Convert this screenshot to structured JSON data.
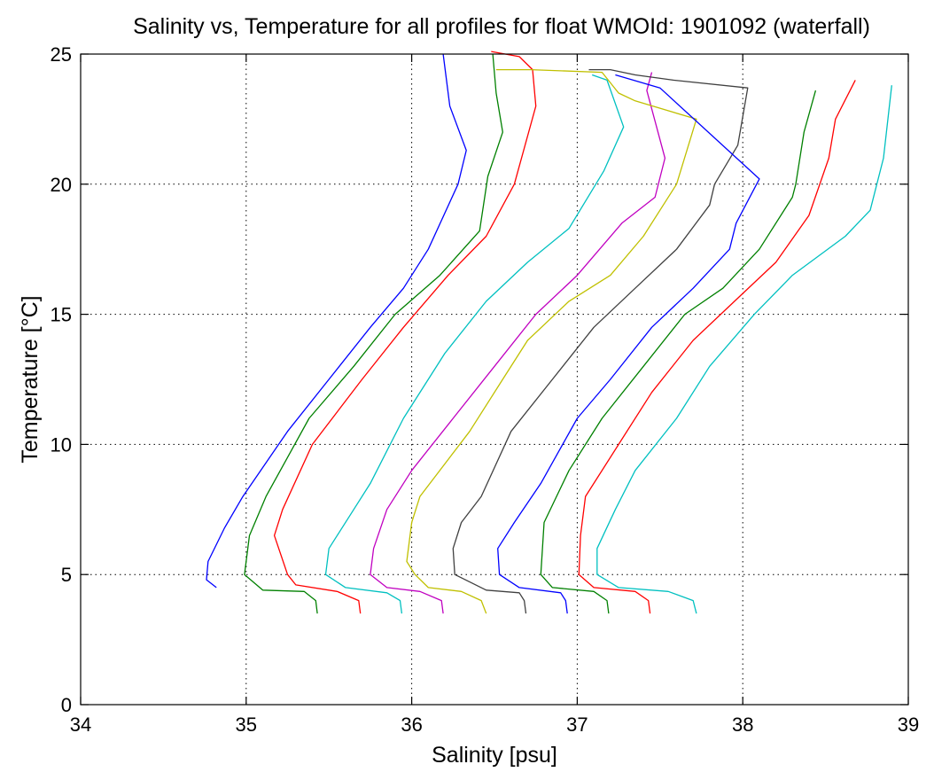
{
  "chart_data": {
    "type": "line",
    "title": "Salinity vs, Temperature for all profiles for float WMOId: 1901092 (waterfall)",
    "xlabel": "Salinity [psu]",
    "ylabel": "Temperature [°C]",
    "xlim": [
      34,
      39
    ],
    "ylim": [
      0,
      25
    ],
    "xticks": [
      34,
      35,
      36,
      37,
      38,
      39
    ],
    "yticks": [
      0,
      5,
      10,
      15,
      20,
      25
    ],
    "x_tick_labels": [
      "34",
      "35",
      "36",
      "37",
      "38",
      "39"
    ],
    "y_tick_labels": [
      "0",
      "5",
      "10",
      "15",
      "20",
      "25"
    ],
    "grid": true,
    "grid_style": "dotted",
    "series": [
      {
        "color": "#0000ff",
        "points": [
          [
            36.19,
            25.0
          ],
          [
            36.23,
            23.0
          ],
          [
            36.33,
            21.3
          ],
          [
            36.28,
            20.0
          ],
          [
            36.1,
            17.5
          ],
          [
            35.95,
            16.0
          ],
          [
            35.75,
            14.5
          ],
          [
            35.5,
            12.5
          ],
          [
            35.25,
            10.5
          ],
          [
            34.98,
            8.0
          ],
          [
            34.87,
            6.8
          ],
          [
            34.77,
            5.5
          ],
          [
            34.76,
            4.8
          ],
          [
            34.82,
            4.5
          ]
        ]
      },
      {
        "color": "#008000",
        "points": [
          [
            36.49,
            25.0
          ],
          [
            36.51,
            23.5
          ],
          [
            36.55,
            22.0
          ],
          [
            36.46,
            20.3
          ],
          [
            36.41,
            18.2
          ],
          [
            36.17,
            16.5
          ],
          [
            35.9,
            15.0
          ],
          [
            35.65,
            13.0
          ],
          [
            35.38,
            11.0
          ],
          [
            35.12,
            8.0
          ],
          [
            35.02,
            6.5
          ],
          [
            34.99,
            5.0
          ],
          [
            35.1,
            4.4
          ],
          [
            35.35,
            4.35
          ],
          [
            35.42,
            4.0
          ],
          [
            35.43,
            3.5
          ]
        ]
      },
      {
        "color": "#ff0000",
        "points": [
          [
            36.48,
            25.1
          ],
          [
            36.65,
            24.9
          ],
          [
            36.73,
            24.4
          ],
          [
            36.75,
            23.0
          ],
          [
            36.62,
            20.0
          ],
          [
            36.45,
            18.0
          ],
          [
            36.22,
            16.5
          ],
          [
            35.95,
            14.5
          ],
          [
            35.7,
            12.5
          ],
          [
            35.4,
            10.0
          ],
          [
            35.22,
            7.5
          ],
          [
            35.17,
            6.5
          ],
          [
            35.25,
            5.0
          ],
          [
            35.3,
            4.6
          ],
          [
            35.55,
            4.35
          ],
          [
            35.68,
            4.0
          ],
          [
            35.69,
            3.5
          ]
        ]
      },
      {
        "color": "#00c0c0",
        "points": [
          [
            37.09,
            24.2
          ],
          [
            37.18,
            24.0
          ],
          [
            37.28,
            22.2
          ],
          [
            37.16,
            20.5
          ],
          [
            36.95,
            18.3
          ],
          [
            36.7,
            17.0
          ],
          [
            36.45,
            15.5
          ],
          [
            36.2,
            13.5
          ],
          [
            35.95,
            11.0
          ],
          [
            35.75,
            8.5
          ],
          [
            35.65,
            7.5
          ],
          [
            35.5,
            6.0
          ],
          [
            35.48,
            5.0
          ],
          [
            35.6,
            4.5
          ],
          [
            35.85,
            4.3
          ],
          [
            35.93,
            4.0
          ],
          [
            35.94,
            3.5
          ]
        ]
      },
      {
        "color": "#c000c0",
        "points": [
          [
            37.45,
            24.3
          ],
          [
            37.42,
            23.6
          ],
          [
            37.53,
            21.0
          ],
          [
            37.47,
            19.5
          ],
          [
            37.27,
            18.5
          ],
          [
            37.0,
            16.5
          ],
          [
            36.75,
            15.0
          ],
          [
            36.5,
            13.0
          ],
          [
            36.25,
            11.0
          ],
          [
            36.0,
            9.0
          ],
          [
            35.85,
            7.5
          ],
          [
            35.77,
            6.0
          ],
          [
            35.75,
            5.0
          ],
          [
            35.85,
            4.5
          ],
          [
            36.05,
            4.35
          ],
          [
            36.18,
            4.0
          ],
          [
            36.19,
            3.5
          ]
        ]
      },
      {
        "color": "#c0c000",
        "points": [
          [
            36.51,
            24.4
          ],
          [
            36.72,
            24.4
          ],
          [
            37.15,
            24.3
          ],
          [
            37.25,
            23.5
          ],
          [
            37.35,
            23.2
          ],
          [
            37.72,
            22.5
          ],
          [
            37.6,
            20.0
          ],
          [
            37.4,
            18.0
          ],
          [
            37.2,
            16.5
          ],
          [
            36.95,
            15.5
          ],
          [
            36.7,
            14.0
          ],
          [
            36.55,
            12.5
          ],
          [
            36.35,
            10.5
          ],
          [
            36.05,
            8.0
          ],
          [
            36.0,
            7.0
          ],
          [
            35.97,
            5.5
          ],
          [
            36.02,
            5.0
          ],
          [
            36.1,
            4.5
          ],
          [
            36.3,
            4.35
          ],
          [
            36.42,
            4.0
          ],
          [
            36.45,
            3.5
          ]
        ]
      },
      {
        "color": "#404040",
        "points": [
          [
            37.07,
            24.4
          ],
          [
            37.2,
            24.4
          ],
          [
            37.35,
            24.2
          ],
          [
            37.58,
            24.0
          ],
          [
            38.03,
            23.7
          ],
          [
            37.97,
            21.5
          ],
          [
            37.83,
            20.0
          ],
          [
            37.8,
            19.2
          ],
          [
            37.6,
            17.5
          ],
          [
            37.35,
            16.0
          ],
          [
            37.1,
            14.5
          ],
          [
            36.85,
            12.5
          ],
          [
            36.6,
            10.5
          ],
          [
            36.42,
            8.0
          ],
          [
            36.3,
            7.0
          ],
          [
            36.25,
            6.0
          ],
          [
            36.26,
            5.0
          ],
          [
            36.45,
            4.4
          ],
          [
            36.65,
            4.3
          ],
          [
            36.68,
            4.0
          ],
          [
            36.69,
            3.5
          ]
        ]
      },
      {
        "color": "#0000ff",
        "points": [
          [
            37.23,
            24.2
          ],
          [
            37.5,
            23.7
          ],
          [
            38.1,
            20.2
          ],
          [
            37.96,
            18.5
          ],
          [
            37.92,
            17.5
          ],
          [
            37.7,
            16.0
          ],
          [
            37.45,
            14.5
          ],
          [
            37.2,
            12.5
          ],
          [
            37.0,
            11.0
          ],
          [
            36.78,
            8.5
          ],
          [
            36.62,
            7.0
          ],
          [
            36.52,
            6.0
          ],
          [
            36.53,
            5.0
          ],
          [
            36.65,
            4.5
          ],
          [
            36.9,
            4.3
          ],
          [
            36.93,
            4.0
          ],
          [
            36.94,
            3.5
          ]
        ]
      },
      {
        "color": "#008000",
        "points": [
          [
            38.44,
            23.6
          ],
          [
            38.37,
            22.0
          ],
          [
            38.32,
            20.0
          ],
          [
            38.3,
            19.5
          ],
          [
            38.1,
            17.5
          ],
          [
            37.88,
            16.0
          ],
          [
            37.65,
            15.0
          ],
          [
            37.4,
            13.0
          ],
          [
            37.15,
            11.0
          ],
          [
            36.95,
            9.0
          ],
          [
            36.8,
            7.0
          ],
          [
            36.78,
            5.0
          ],
          [
            36.85,
            4.5
          ],
          [
            37.1,
            4.35
          ],
          [
            37.18,
            4.0
          ],
          [
            37.19,
            3.5
          ]
        ]
      },
      {
        "color": "#ff0000",
        "points": [
          [
            38.68,
            24.0
          ],
          [
            38.56,
            22.5
          ],
          [
            38.52,
            21.0
          ],
          [
            38.4,
            18.8
          ],
          [
            38.2,
            17.0
          ],
          [
            37.95,
            15.5
          ],
          [
            37.7,
            14.0
          ],
          [
            37.45,
            12.0
          ],
          [
            37.25,
            10.0
          ],
          [
            37.05,
            8.0
          ],
          [
            37.02,
            6.5
          ],
          [
            37.01,
            5.0
          ],
          [
            37.1,
            4.5
          ],
          [
            37.35,
            4.35
          ],
          [
            37.43,
            4.0
          ],
          [
            37.44,
            3.5
          ]
        ]
      },
      {
        "color": "#00c0c0",
        "points": [
          [
            38.9,
            23.8
          ],
          [
            38.85,
            21.0
          ],
          [
            38.77,
            19.0
          ],
          [
            38.62,
            18.0
          ],
          [
            38.3,
            16.5
          ],
          [
            38.07,
            15.0
          ],
          [
            37.8,
            13.0
          ],
          [
            37.6,
            11.0
          ],
          [
            37.35,
            9.0
          ],
          [
            37.23,
            7.5
          ],
          [
            37.12,
            6.0
          ],
          [
            37.12,
            5.0
          ],
          [
            37.25,
            4.5
          ],
          [
            37.55,
            4.35
          ],
          [
            37.7,
            4.0
          ],
          [
            37.72,
            3.5
          ]
        ]
      }
    ]
  }
}
